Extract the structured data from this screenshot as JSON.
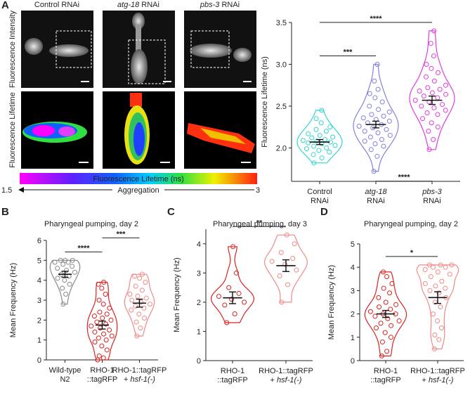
{
  "panel_a_images": {
    "letter": "A",
    "columns": [
      [
        {
          "text": "Control RNAi"
        }
      ],
      [
        {
          "text": "atg-18",
          "italic": true
        },
        {
          "text": " RNAi"
        }
      ],
      [
        {
          "text": "pbs-3",
          "italic": true
        },
        {
          "text": " RNAi"
        }
      ]
    ],
    "rows": [
      "Fluorescence Intensity",
      "Fluorescence Lifetime"
    ],
    "colorbar": {
      "title": "Fluorescence Lifetime (ns)",
      "arrow_label": "Aggregation",
      "min": 1.5,
      "max": 3
    }
  },
  "chart_data": [
    {
      "type": "violin",
      "panel": "A",
      "y_label": "Fluorescence Lifetime (ns)",
      "categories": [
        [
          [
            {
              "text": "Control"
            }
          ],
          [
            {
              "text": "RNAi"
            }
          ]
        ],
        [
          [
            {
              "text": "atg-18",
              "italic": true
            }
          ],
          [
            {
              "text": "RNAi"
            }
          ]
        ],
        [
          [
            {
              "text": "pbs-3",
              "italic": true
            }
          ],
          [
            {
              "text": "RNAi"
            }
          ]
        ]
      ],
      "ylim": [
        1.6,
        3.5
      ],
      "yticks": [
        {
          "value": 2,
          "label": "2.0"
        },
        2.5,
        {
          "value": 3,
          "label": "3.0"
        },
        3.5
      ],
      "series": [
        {
          "color": "#33d6d0",
          "mean": 2.07,
          "error": 0.03,
          "values": [
            1.82,
            1.88,
            1.92,
            1.95,
            1.97,
            1.99,
            2.0,
            2.02,
            2.03,
            2.05,
            2.06,
            2.07,
            2.08,
            2.09,
            2.1,
            2.12,
            2.13,
            2.15,
            2.17,
            2.2,
            2.22,
            2.25,
            2.3,
            2.35,
            2.45
          ]
        },
        {
          "color": "#8080e0",
          "mean": 2.28,
          "error": 0.04,
          "values": [
            1.72,
            1.9,
            1.98,
            2.02,
            2.05,
            2.08,
            2.1,
            2.13,
            2.15,
            2.18,
            2.2,
            2.22,
            2.24,
            2.26,
            2.28,
            2.3,
            2.32,
            2.34,
            2.36,
            2.38,
            2.4,
            2.43,
            2.46,
            2.5,
            2.55,
            2.6,
            2.65,
            2.7,
            2.8,
            3.0
          ]
        },
        {
          "color": "#e23be2",
          "mean": 2.57,
          "error": 0.05,
          "values": [
            1.98,
            2.1,
            2.2,
            2.25,
            2.3,
            2.35,
            2.4,
            2.42,
            2.45,
            2.48,
            2.5,
            2.52,
            2.55,
            2.57,
            2.6,
            2.62,
            2.64,
            2.66,
            2.68,
            2.7,
            2.72,
            2.75,
            2.8,
            2.85,
            2.9,
            2.95,
            3.0,
            3.1,
            3.25,
            3.4
          ]
        }
      ],
      "annotations": [
        {
          "text": "***",
          "between": [
            0,
            1
          ]
        },
        {
          "text": "****",
          "between": [
            0,
            2
          ]
        },
        {
          "text": "****",
          "between": [
            1,
            2
          ],
          "below": true
        }
      ]
    },
    {
      "type": "violin",
      "panel": "B",
      "title": "Pharyngeal pumping, day 2",
      "y_label": "Mean Frequency (Hz)",
      "categories": [
        [
          [
            {
              "text": "Wild-type"
            }
          ],
          [
            {
              "text": "N2"
            }
          ]
        ],
        [
          [
            {
              "text": "RHO-1"
            }
          ],
          [
            {
              "text": "::tagRFP"
            }
          ]
        ],
        [
          [
            {
              "text": "RHO-1::tagRFP"
            }
          ],
          [
            {
              "text": "+ "
            },
            {
              "text": "hsf-1(-)",
              "italic": true
            }
          ]
        ]
      ],
      "ylim": [
        0,
        6
      ],
      "yticks": [
        0,
        1,
        2,
        3,
        4,
        5,
        6
      ],
      "series": [
        {
          "color": "#8a8a8a",
          "mean": 4.3,
          "error": 0.15,
          "values": [
            2.8,
            3.3,
            3.6,
            3.8,
            4.0,
            4.1,
            4.2,
            4.3,
            4.4,
            4.5,
            4.6,
            4.7,
            4.8,
            4.9,
            4.9,
            5.0,
            5.0,
            5.0
          ]
        },
        {
          "color": "#d9231f",
          "mean": 1.75,
          "error": 0.2,
          "values": [
            0,
            0.1,
            0.2,
            0.5,
            0.7,
            0.9,
            1.0,
            1.1,
            1.2,
            1.3,
            1.4,
            1.5,
            1.6,
            1.7,
            1.8,
            1.9,
            2.0,
            2.1,
            2.2,
            2.3,
            2.4,
            2.6,
            2.8,
            3.0,
            3.3,
            3.6,
            3.8,
            3.9
          ]
        },
        {
          "color": "#f08a86",
          "mean": 2.85,
          "error": 0.2,
          "values": [
            1.2,
            1.6,
            1.9,
            2.1,
            2.3,
            2.5,
            2.6,
            2.7,
            2.8,
            2.9,
            3.0,
            3.1,
            3.2,
            3.3,
            3.5,
            3.7,
            3.9,
            4.1,
            4.2,
            4.3
          ]
        }
      ],
      "annotations": [
        {
          "text": "****",
          "between": [
            0,
            1
          ]
        },
        {
          "text": "***",
          "between": [
            1,
            2
          ]
        }
      ]
    },
    {
      "type": "violin",
      "panel": "C",
      "title": "Pharyngeal pumping, day 3",
      "y_label": "Mean Frequency (Hz)",
      "categories": [
        [
          [
            {
              "text": "RHO-1"
            }
          ],
          [
            {
              "text": "::tagRFP"
            }
          ]
        ],
        [
          [
            {
              "text": "RHO-1::tagRFP"
            }
          ],
          [
            {
              "text": "+ "
            },
            {
              "text": "hsf-1(-)",
              "italic": true
            }
          ]
        ]
      ],
      "ylim": [
        0,
        4.5
      ],
      "yticks": [
        0,
        1,
        2,
        3,
        4
      ],
      "series": [
        {
          "color": "#d9231f",
          "mean": 2.15,
          "error": 0.2,
          "values": [
            1.3,
            1.6,
            1.9,
            2.0,
            2.1,
            2.2,
            2.3,
            2.5,
            3.0,
            3.9
          ]
        },
        {
          "color": "#f08a86",
          "mean": 3.25,
          "error": 0.2,
          "values": [
            2.0,
            2.6,
            2.9,
            3.1,
            3.3,
            3.4,
            3.5,
            3.7,
            4.0,
            4.3
          ]
        }
      ],
      "annotations": [
        {
          "text": "**",
          "between": [
            0,
            1
          ]
        }
      ]
    },
    {
      "type": "violin",
      "panel": "D",
      "title": "Pharyngeal pumping, day 2",
      "y_label": "Mean Frequency (Hz)",
      "categories": [
        [
          [
            {
              "text": "RHO-1"
            }
          ],
          [
            {
              "text": "::tagRFP"
            }
          ]
        ],
        [
          [
            {
              "text": "RHO-1::tagRFP"
            }
          ],
          [
            {
              "text": "+ "
            },
            {
              "text": "hsf-1(-)",
              "italic": true
            }
          ]
        ]
      ],
      "ylim": [
        0,
        5
      ],
      "yticks": [
        0,
        1,
        2,
        3,
        4,
        5
      ],
      "series": [
        {
          "color": "#d9231f",
          "mean": 2.0,
          "error": 0.15,
          "values": [
            0.2,
            0.4,
            0.8,
            1.0,
            1.2,
            1.4,
            1.5,
            1.6,
            1.7,
            1.8,
            1.9,
            2.0,
            2.0,
            2.1,
            2.2,
            2.3,
            2.4,
            2.5,
            2.7,
            2.9,
            3.1,
            3.3,
            3.6,
            3.8
          ]
        },
        {
          "color": "#f08a86",
          "mean": 2.7,
          "error": 0.25,
          "values": [
            0.5,
            0.9,
            1.1,
            1.4,
            1.7,
            2.0,
            2.3,
            2.5,
            2.7,
            2.9,
            3.0,
            3.1,
            3.2,
            3.3,
            3.4,
            3.6,
            3.7,
            3.8,
            3.9,
            4.0,
            4.0,
            4.1,
            4.1,
            4.1
          ]
        }
      ],
      "annotations": [
        {
          "text": "*",
          "between": [
            0,
            1
          ]
        }
      ]
    }
  ]
}
